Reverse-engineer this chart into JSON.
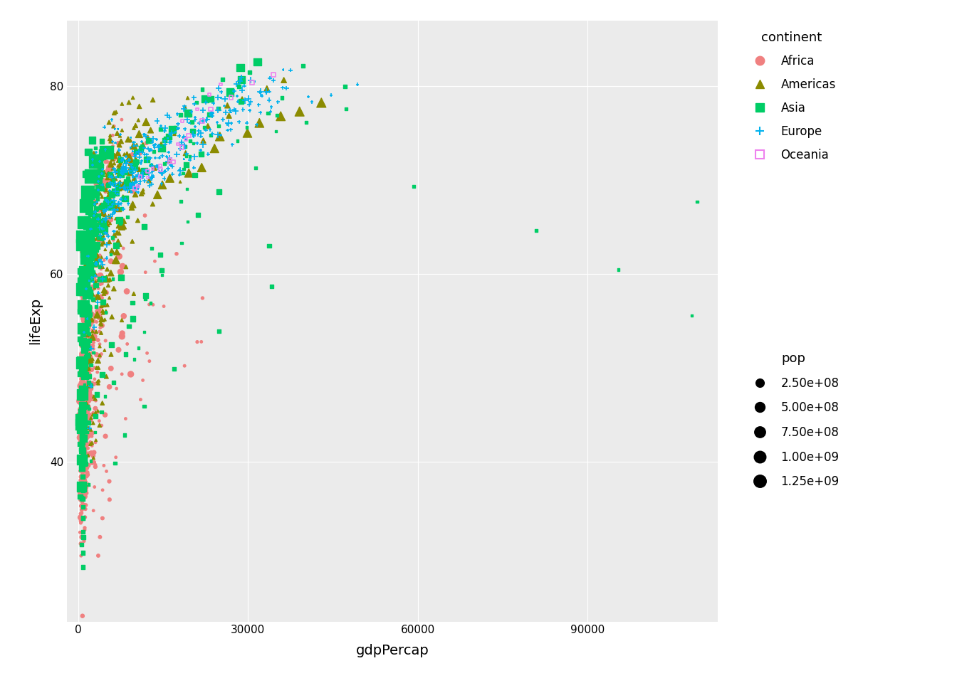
{
  "title": "",
  "xlabel": "gdpPercap",
  "ylabel": "lifeExp",
  "xlim": [
    -2000,
    113000
  ],
  "ylim": [
    23,
    87
  ],
  "xticks": [
    0,
    30000,
    60000,
    90000
  ],
  "yticks": [
    40,
    60,
    80
  ],
  "bg_color": "#EBEBEB",
  "grid_color": "white",
  "continents": [
    "Africa",
    "Americas",
    "Asia",
    "Europe",
    "Oceania"
  ],
  "colors": {
    "Africa": "#F08080",
    "Americas": "#8B8B00",
    "Asia": "#00CD66",
    "Europe": "#00B2EE",
    "Oceania": "#EE82EE"
  },
  "markers": {
    "Africa": "o",
    "Americas": "^",
    "Asia": "s",
    "Europe": "+",
    "Oceania": "s"
  },
  "legend_title_continent": "continent",
  "legend_title_pop": "pop",
  "pop_legend_sizes": [
    250000000,
    500000000,
    750000000,
    1000000000,
    1250000000
  ],
  "pop_legend_labels": [
    "2.50e+08",
    "5.00e+08",
    "7.50e+08",
    "1.00e+09",
    "1.25e+09"
  ]
}
